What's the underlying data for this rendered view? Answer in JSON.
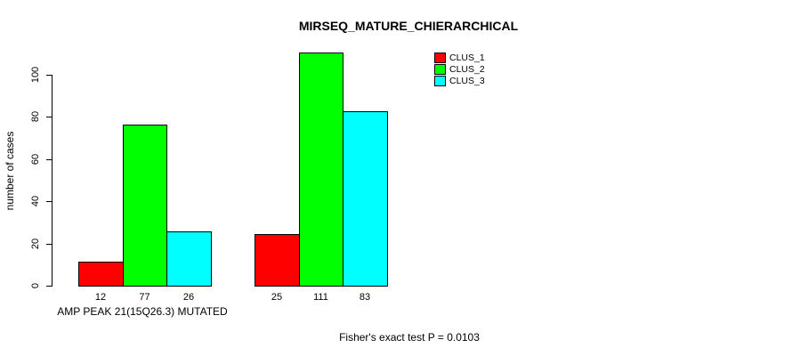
{
  "chart_data": {
    "type": "bar",
    "title": "MIRSEQ_MATURE_CHIERARCHICAL",
    "ylabel": "number of cases",
    "xlabel": "",
    "categories": [
      "AMP PEAK 21(15Q26.3) MUTATED",
      ""
    ],
    "series": [
      {
        "name": "CLUS_1",
        "color": "#ff0000",
        "values": [
          12,
          25
        ]
      },
      {
        "name": "CLUS_2",
        "color": "#00ff00",
        "values": [
          77,
          111
        ]
      },
      {
        "name": "CLUS_3",
        "color": "#00ffff",
        "values": [
          26,
          83
        ]
      }
    ],
    "yticks": [
      0,
      20,
      40,
      60,
      80,
      100
    ],
    "axis_range": [
      0,
      100
    ],
    "grid": false,
    "legend_position": "top-right",
    "bar_border_color": "#000000",
    "bar_value_labels_shown": true,
    "annotation": "Fisher's exact test P = 0.0103"
  }
}
